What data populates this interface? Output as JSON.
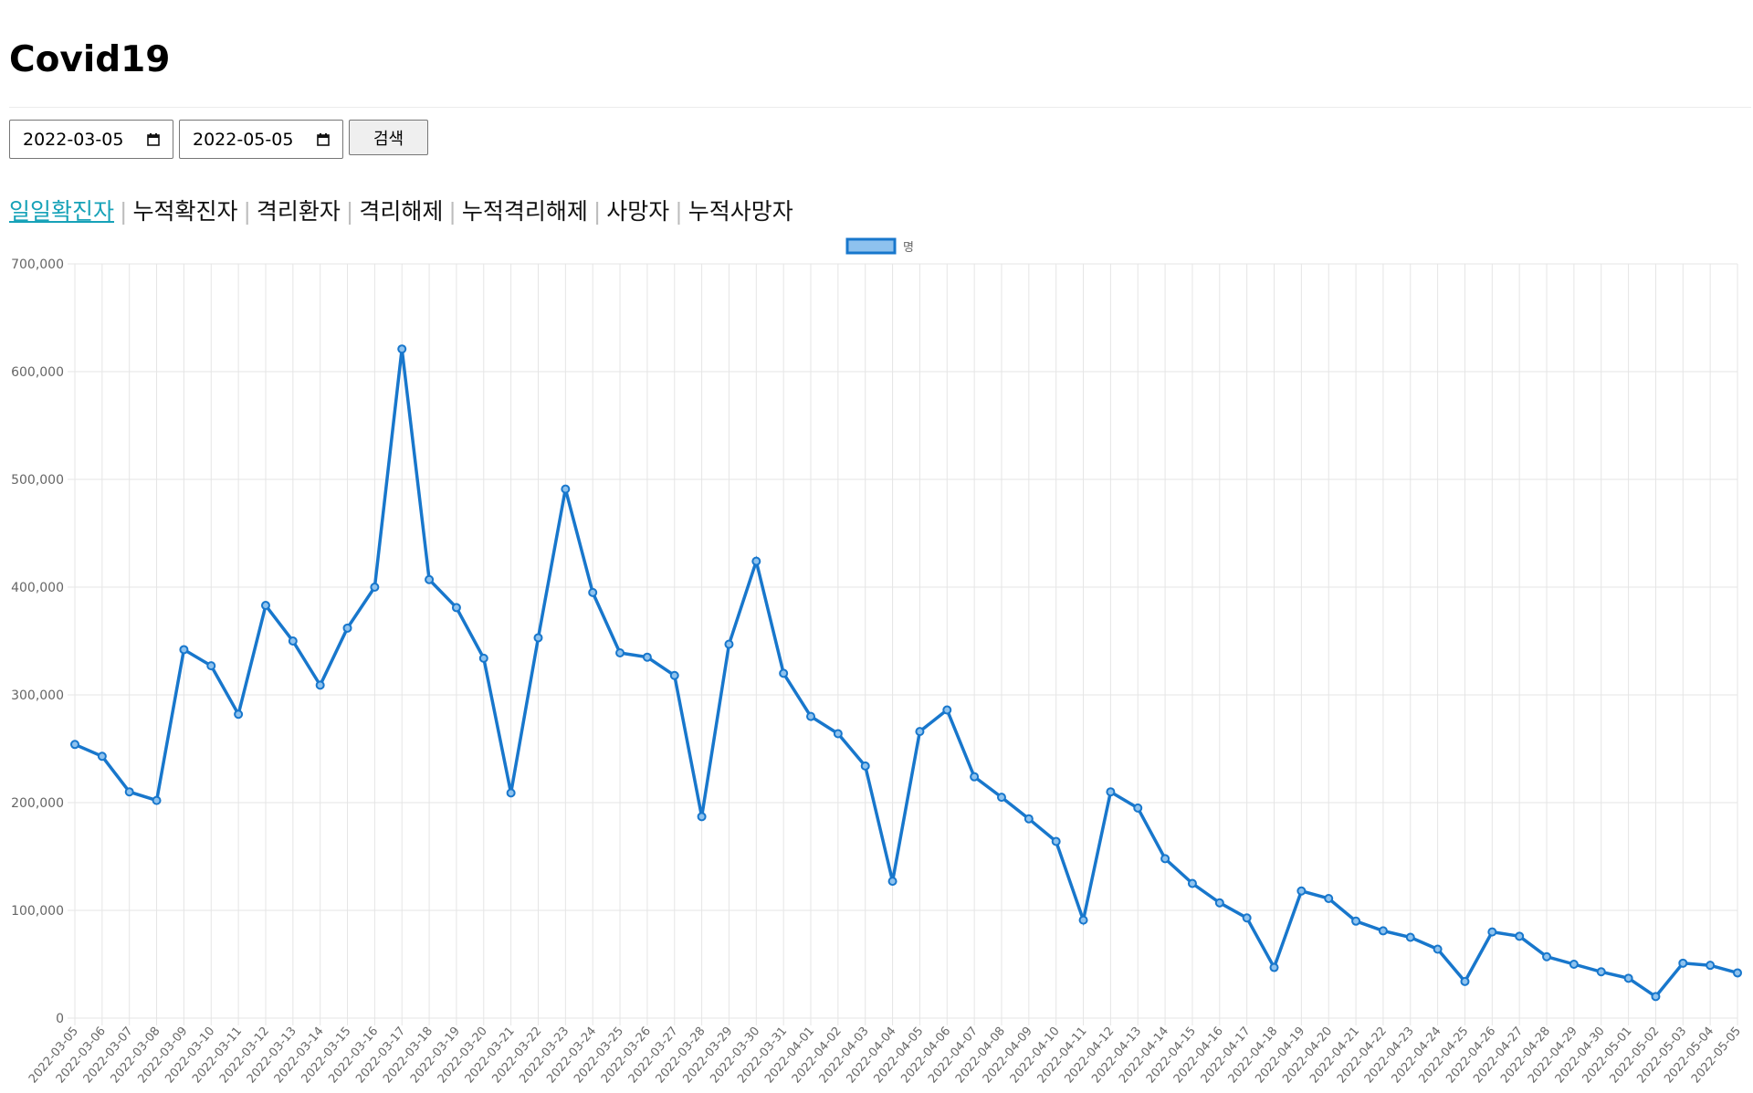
{
  "header": {
    "title": "Covid19"
  },
  "controls": {
    "start_date": "2022-03-05",
    "end_date": "2022-05-05",
    "search_label": "검색"
  },
  "tabs": [
    {
      "label": "일일확진자",
      "active": true
    },
    {
      "label": "누적확진자",
      "active": false
    },
    {
      "label": "격리환자",
      "active": false
    },
    {
      "label": "격리해제",
      "active": false
    },
    {
      "label": "누적격리해제",
      "active": false
    },
    {
      "label": "사망자",
      "active": false
    },
    {
      "label": "누적사망자",
      "active": false
    }
  ],
  "colors": {
    "line": "#1877cc",
    "legend_fill": "#8ec2ee",
    "active_tab": "#17a2b8",
    "grid": "#e5e5e5"
  },
  "chart_data": {
    "type": "line",
    "legend": "명",
    "legend_position": "top",
    "grid": true,
    "ylim": [
      0,
      700000
    ],
    "yticks": [
      0,
      100000,
      200000,
      300000,
      400000,
      500000,
      600000,
      700000
    ],
    "ytick_labels": [
      "0",
      "100,000",
      "200,000",
      "300,000",
      "400,000",
      "500,000",
      "600,000",
      "700,000"
    ],
    "categories": [
      "2022-03-05",
      "2022-03-06",
      "2022-03-07",
      "2022-03-08",
      "2022-03-09",
      "2022-03-10",
      "2022-03-11",
      "2022-03-12",
      "2022-03-13",
      "2022-03-14",
      "2022-03-15",
      "2022-03-16",
      "2022-03-17",
      "2022-03-18",
      "2022-03-19",
      "2022-03-20",
      "2022-03-21",
      "2022-03-22",
      "2022-03-23",
      "2022-03-24",
      "2022-03-25",
      "2022-03-26",
      "2022-03-27",
      "2022-03-28",
      "2022-03-29",
      "2022-03-30",
      "2022-03-31",
      "2022-04-01",
      "2022-04-02",
      "2022-04-03",
      "2022-04-04",
      "2022-04-05",
      "2022-04-06",
      "2022-04-07",
      "2022-04-08",
      "2022-04-09",
      "2022-04-10",
      "2022-04-11",
      "2022-04-12",
      "2022-04-13",
      "2022-04-14",
      "2022-04-15",
      "2022-04-16",
      "2022-04-17",
      "2022-04-18",
      "2022-04-19",
      "2022-04-20",
      "2022-04-21",
      "2022-04-22",
      "2022-04-23",
      "2022-04-24",
      "2022-04-25",
      "2022-04-26",
      "2022-04-27",
      "2022-04-28",
      "2022-04-29",
      "2022-04-30",
      "2022-05-01",
      "2022-05-02",
      "2022-05-03",
      "2022-05-04",
      "2022-05-05"
    ],
    "values": [
      254000,
      243000,
      210000,
      202000,
      342000,
      327000,
      282000,
      383000,
      350000,
      309000,
      362000,
      400000,
      621000,
      407000,
      381000,
      334000,
      209000,
      353000,
      491000,
      395000,
      339000,
      335000,
      318000,
      187000,
      347000,
      424000,
      320000,
      280000,
      264000,
      234000,
      127000,
      266000,
      286000,
      224000,
      205000,
      185000,
      164000,
      91000,
      210000,
      195000,
      148000,
      125000,
      107000,
      93000,
      47000,
      118000,
      111000,
      90000,
      81000,
      75000,
      64000,
      34000,
      80000,
      76000,
      57000,
      50000,
      43000,
      37000,
      20000,
      51000,
      49000,
      42000
    ]
  }
}
